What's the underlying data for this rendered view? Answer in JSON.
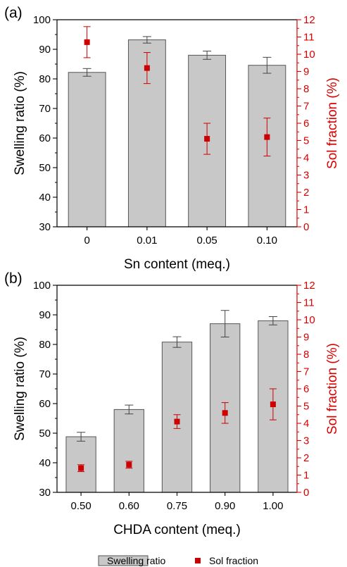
{
  "chart_data": [
    {
      "panel_label": "(a)",
      "type": "bar",
      "categories": [
        "0",
        "0.01",
        "0.05",
        "0.10"
      ],
      "xlabel": "Sn content (meq.)",
      "ylabel": "Swelling ratio (%)",
      "y2label": "Sol fraction (%)",
      "ylim": [
        30,
        100
      ],
      "y2lim": [
        0,
        12
      ],
      "yticks": [
        30,
        40,
        50,
        60,
        70,
        80,
        90,
        100
      ],
      "y2ticks": [
        0,
        1,
        2,
        3,
        4,
        5,
        6,
        7,
        8,
        9,
        10,
        11,
        12
      ],
      "series": [
        {
          "name": "Swelling ratio",
          "type": "bar",
          "axis": "left",
          "values": [
            82.2,
            93.2,
            88.0,
            84.6
          ],
          "errors": [
            1.3,
            1.1,
            1.4,
            2.7
          ]
        },
        {
          "name": "Sol fraction",
          "type": "scatter",
          "axis": "right",
          "values": [
            10.7,
            9.2,
            5.1,
            5.2
          ],
          "errors": [
            0.9,
            0.9,
            0.9,
            1.1
          ]
        }
      ]
    },
    {
      "panel_label": "(b)",
      "type": "bar",
      "categories": [
        "0.50",
        "0.60",
        "0.75",
        "0.90",
        "1.00"
      ],
      "xlabel": "CHDA content (meq.)",
      "ylabel": "Swelling ratio (%)",
      "y2label": "Sol fraction (%)",
      "ylim": [
        30,
        100
      ],
      "y2lim": [
        0,
        12
      ],
      "yticks": [
        30,
        40,
        50,
        60,
        70,
        80,
        90,
        100
      ],
      "y2ticks": [
        0,
        1,
        2,
        3,
        4,
        5,
        6,
        7,
        8,
        9,
        10,
        11,
        12
      ],
      "series": [
        {
          "name": "Swelling ratio",
          "type": "bar",
          "axis": "left",
          "values": [
            48.8,
            58.0,
            80.8,
            87.0,
            88.0
          ],
          "errors": [
            1.5,
            1.5,
            1.8,
            4.5,
            1.4
          ]
        },
        {
          "name": "Sol fraction",
          "type": "scatter",
          "axis": "right",
          "values": [
            1.4,
            1.6,
            4.1,
            4.6,
            5.1
          ],
          "errors": [
            0.2,
            0.2,
            0.4,
            0.6,
            0.9
          ]
        }
      ]
    }
  ],
  "legend": [
    {
      "name": "Swelling ratio",
      "marker": "bar"
    },
    {
      "name": "Sol fraction",
      "marker": "square"
    }
  ],
  "colors": {
    "bar_fill": "#c8c8c8",
    "bar_stroke": "#555555",
    "sol_marker": "#cc0000",
    "right_axis": "#d90000",
    "left_axis": "#000000"
  }
}
